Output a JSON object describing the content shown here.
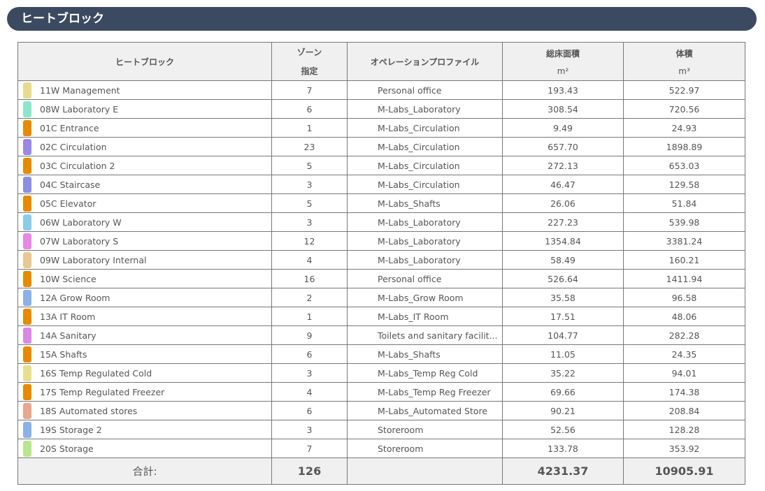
{
  "title": "ヒートブロック",
  "headers": {
    "block": "ヒートブロック",
    "zones1": "ゾーン",
    "zones2": "指定",
    "profile": "オペレーションプロファイル",
    "area": "総床面積",
    "area_unit": "m²",
    "volume": "体積",
    "volume_unit": "m³"
  },
  "rows": [
    {
      "name": "11W Management",
      "color": "#e6dc8c",
      "zones": "7",
      "profile": "Personal office",
      "area": "193.43",
      "volume": "522.97"
    },
    {
      "name": "08W Laboratory E",
      "color": "#8ce6cc",
      "zones": "6",
      "profile": "M-Labs_Laboratory",
      "area": "308.54",
      "volume": "720.56"
    },
    {
      "name": "01C Entrance",
      "color": "#e88a00",
      "zones": "1",
      "profile": "M-Labs_Circulation",
      "area": "9.49",
      "volume": "24.93"
    },
    {
      "name": "02C Circulation",
      "color": "#9a88e8",
      "zones": "23",
      "profile": "M-Labs_Circulation",
      "area": "657.70",
      "volume": "1898.89"
    },
    {
      "name": "03C Circulation 2",
      "color": "#e88a00",
      "zones": "5",
      "profile": "M-Labs_Circulation",
      "area": "272.13",
      "volume": "653.03"
    },
    {
      "name": "04C Staircase",
      "color": "#8a8ee4",
      "zones": "3",
      "profile": "M-Labs_Circulation",
      "area": "46.47",
      "volume": "129.58"
    },
    {
      "name": "05C Elevator",
      "color": "#e88a00",
      "zones": "5",
      "profile": "M-Labs_Shafts",
      "area": "26.06",
      "volume": "51.84"
    },
    {
      "name": "06W Laboratory W",
      "color": "#8ccce8",
      "zones": "3",
      "profile": "M-Labs_Laboratory",
      "area": "227.23",
      "volume": "539.98"
    },
    {
      "name": "07W Laboratory S",
      "color": "#e888e4",
      "zones": "12",
      "profile": "M-Labs_Laboratory",
      "area": "1354.84",
      "volume": "3381.24"
    },
    {
      "name": "09W Laboratory Internal",
      "color": "#e8c890",
      "zones": "4",
      "profile": "M-Labs_Laboratory",
      "area": "58.49",
      "volume": "160.21"
    },
    {
      "name": "10W Science",
      "color": "#e88a00",
      "zones": "16",
      "profile": "Personal office",
      "area": "526.64",
      "volume": "1411.94"
    },
    {
      "name": "12A Grow Room",
      "color": "#8cb0e8",
      "zones": "2",
      "profile": "M-Labs_Grow Room",
      "area": "35.58",
      "volume": "96.58"
    },
    {
      "name": "13A IT Room",
      "color": "#e88a00",
      "zones": "1",
      "profile": "M-Labs_IT Room",
      "area": "17.51",
      "volume": "48.06"
    },
    {
      "name": "14A Sanitary",
      "color": "#d888e8",
      "zones": "9",
      "profile": "Toilets and sanitary facilit...",
      "area": "104.77",
      "volume": "282.28"
    },
    {
      "name": "15A Shafts",
      "color": "#e88a00",
      "zones": "6",
      "profile": "M-Labs_Shafts",
      "area": "11.05",
      "volume": "24.35"
    },
    {
      "name": "16S Temp Regulated Cold",
      "color": "#e6e08c",
      "zones": "3",
      "profile": "M-Labs_Temp Reg Cold",
      "area": "35.22",
      "volume": "94.01"
    },
    {
      "name": "17S Temp Regulated Freezer",
      "color": "#e88a00",
      "zones": "4",
      "profile": "M-Labs_Temp Reg Freezer",
      "area": "69.66",
      "volume": "174.38"
    },
    {
      "name": "18S Automated stores",
      "color": "#e8a88c",
      "zones": "6",
      "profile": "M-Labs_Automated Store",
      "area": "90.21",
      "volume": "208.84"
    },
    {
      "name": "19S Storage 2",
      "color": "#8cb0e8",
      "zones": "3",
      "profile": "Storeroom",
      "area": "52.56",
      "volume": "128.28"
    },
    {
      "name": "20S Storage",
      "color": "#b8e68c",
      "zones": "7",
      "profile": "Storeroom",
      "area": "133.78",
      "volume": "353.92"
    }
  ],
  "totals": {
    "label": "合計:",
    "zones": "126",
    "area": "4231.37",
    "volume": "10905.91"
  }
}
